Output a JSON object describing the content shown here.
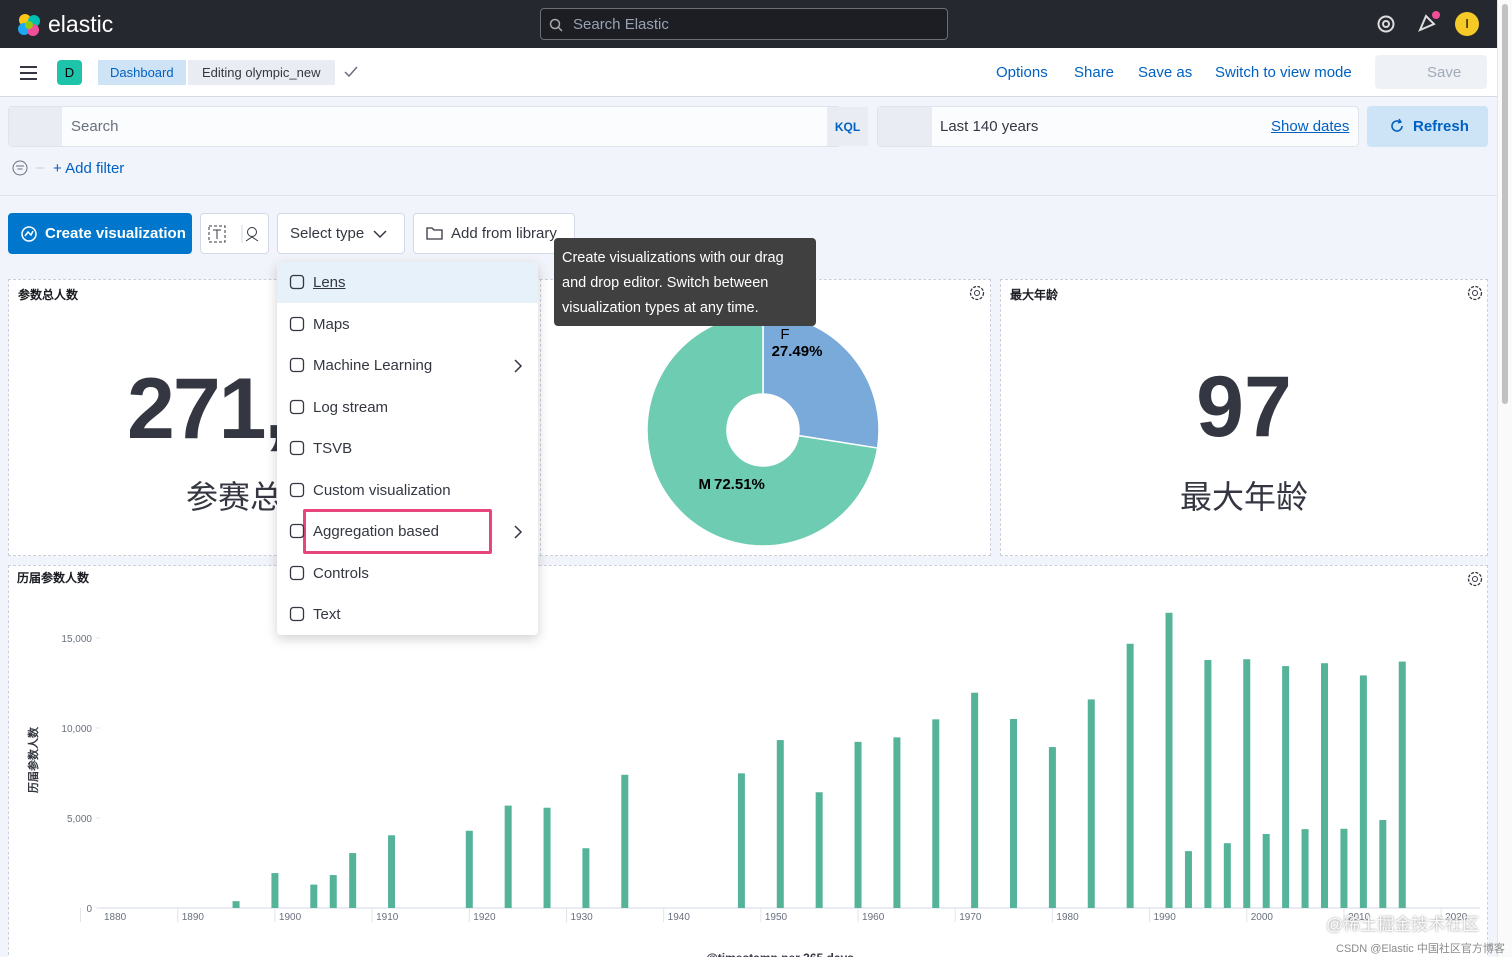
{
  "header": {
    "brand": "elastic",
    "search_placeholder": "Search Elastic",
    "avatar": "I"
  },
  "toolbar": {
    "space": "D",
    "breadcrumbs": [
      "Dashboard",
      "Editing olympic_new"
    ],
    "actions": [
      "Options",
      "Share",
      "Save as",
      "Switch to view mode"
    ],
    "save": "Save"
  },
  "query_bar": {
    "search_placeholder": "Search",
    "kql": "KQL",
    "time_range": "Last 140 years",
    "show_dates": "Show dates",
    "refresh": "Refresh",
    "add_filter": "+ Add filter"
  },
  "panel_toolbar": {
    "create": "Create visualization",
    "select_type": "Select type",
    "add_from_library": "Add from library"
  },
  "type_menu": {
    "items": [
      "Lens",
      "Maps",
      "Machine Learning",
      "Log stream",
      "TSVB",
      "Custom visualization",
      "Aggregation based",
      "Controls",
      "Text"
    ]
  },
  "tooltip": "Create visualizations with our drag and drop editor. Switch between visualization types at any time.",
  "metric_panels": [
    {
      "title": "参数总人数",
      "value": "271,",
      "label": "参赛总"
    },
    {
      "title": "最大年龄",
      "value": "97",
      "label": "最大年龄"
    }
  ],
  "chart_data": [
    {
      "type": "pie",
      "categories": [
        "F",
        "M"
      ],
      "values": [
        27.49,
        72.51
      ],
      "value_labels": [
        "27.49%",
        "72.51%"
      ],
      "colors": [
        "#79aad9",
        "#6dccb1"
      ],
      "donut": true
    },
    {
      "type": "bar",
      "title": "历届参数人数",
      "y_label": "历届参数人数",
      "x_label": "@timestamp per 365 days",
      "color": "#54b399",
      "x": [
        1896,
        1900,
        1904,
        1906,
        1908,
        1912,
        1920,
        1924,
        1928,
        1932,
        1936,
        1948,
        1952,
        1956,
        1960,
        1964,
        1968,
        1972,
        1976,
        1980,
        1984,
        1988,
        1992,
        1994,
        1996,
        1998,
        2000,
        2002,
        2004,
        2006,
        2008,
        2010,
        2012,
        2014,
        2016
      ],
      "values": [
        380,
        1940,
        1300,
        1830,
        3050,
        4040,
        4290,
        5690,
        5570,
        3320,
        7400,
        7480,
        9330,
        6430,
        9230,
        9480,
        10480,
        11960,
        10500,
        8940,
        11590,
        14680,
        16400,
        3160,
        13780,
        3600,
        13820,
        4110,
        13440,
        4380,
        13600,
        4400,
        12920,
        4890,
        13690
      ],
      "xlim": [
        1882,
        2024
      ],
      "xticks": [
        1880,
        1890,
        1900,
        1910,
        1920,
        1930,
        1940,
        1950,
        1960,
        1970,
        1980,
        1990,
        2000,
        2010,
        2020
      ],
      "ylim": [
        0,
        16500
      ],
      "yticks": [
        0,
        {
          "value": 5000,
          "label": "5,000"
        },
        {
          "value": 10000,
          "label": "10,000"
        },
        {
          "value": 15000,
          "label": "15,000"
        }
      ],
      "grid": false
    }
  ],
  "watermark": [
    "@稀土掘金技术社区",
    "CSDN @Elastic 中国社区官方博客"
  ]
}
